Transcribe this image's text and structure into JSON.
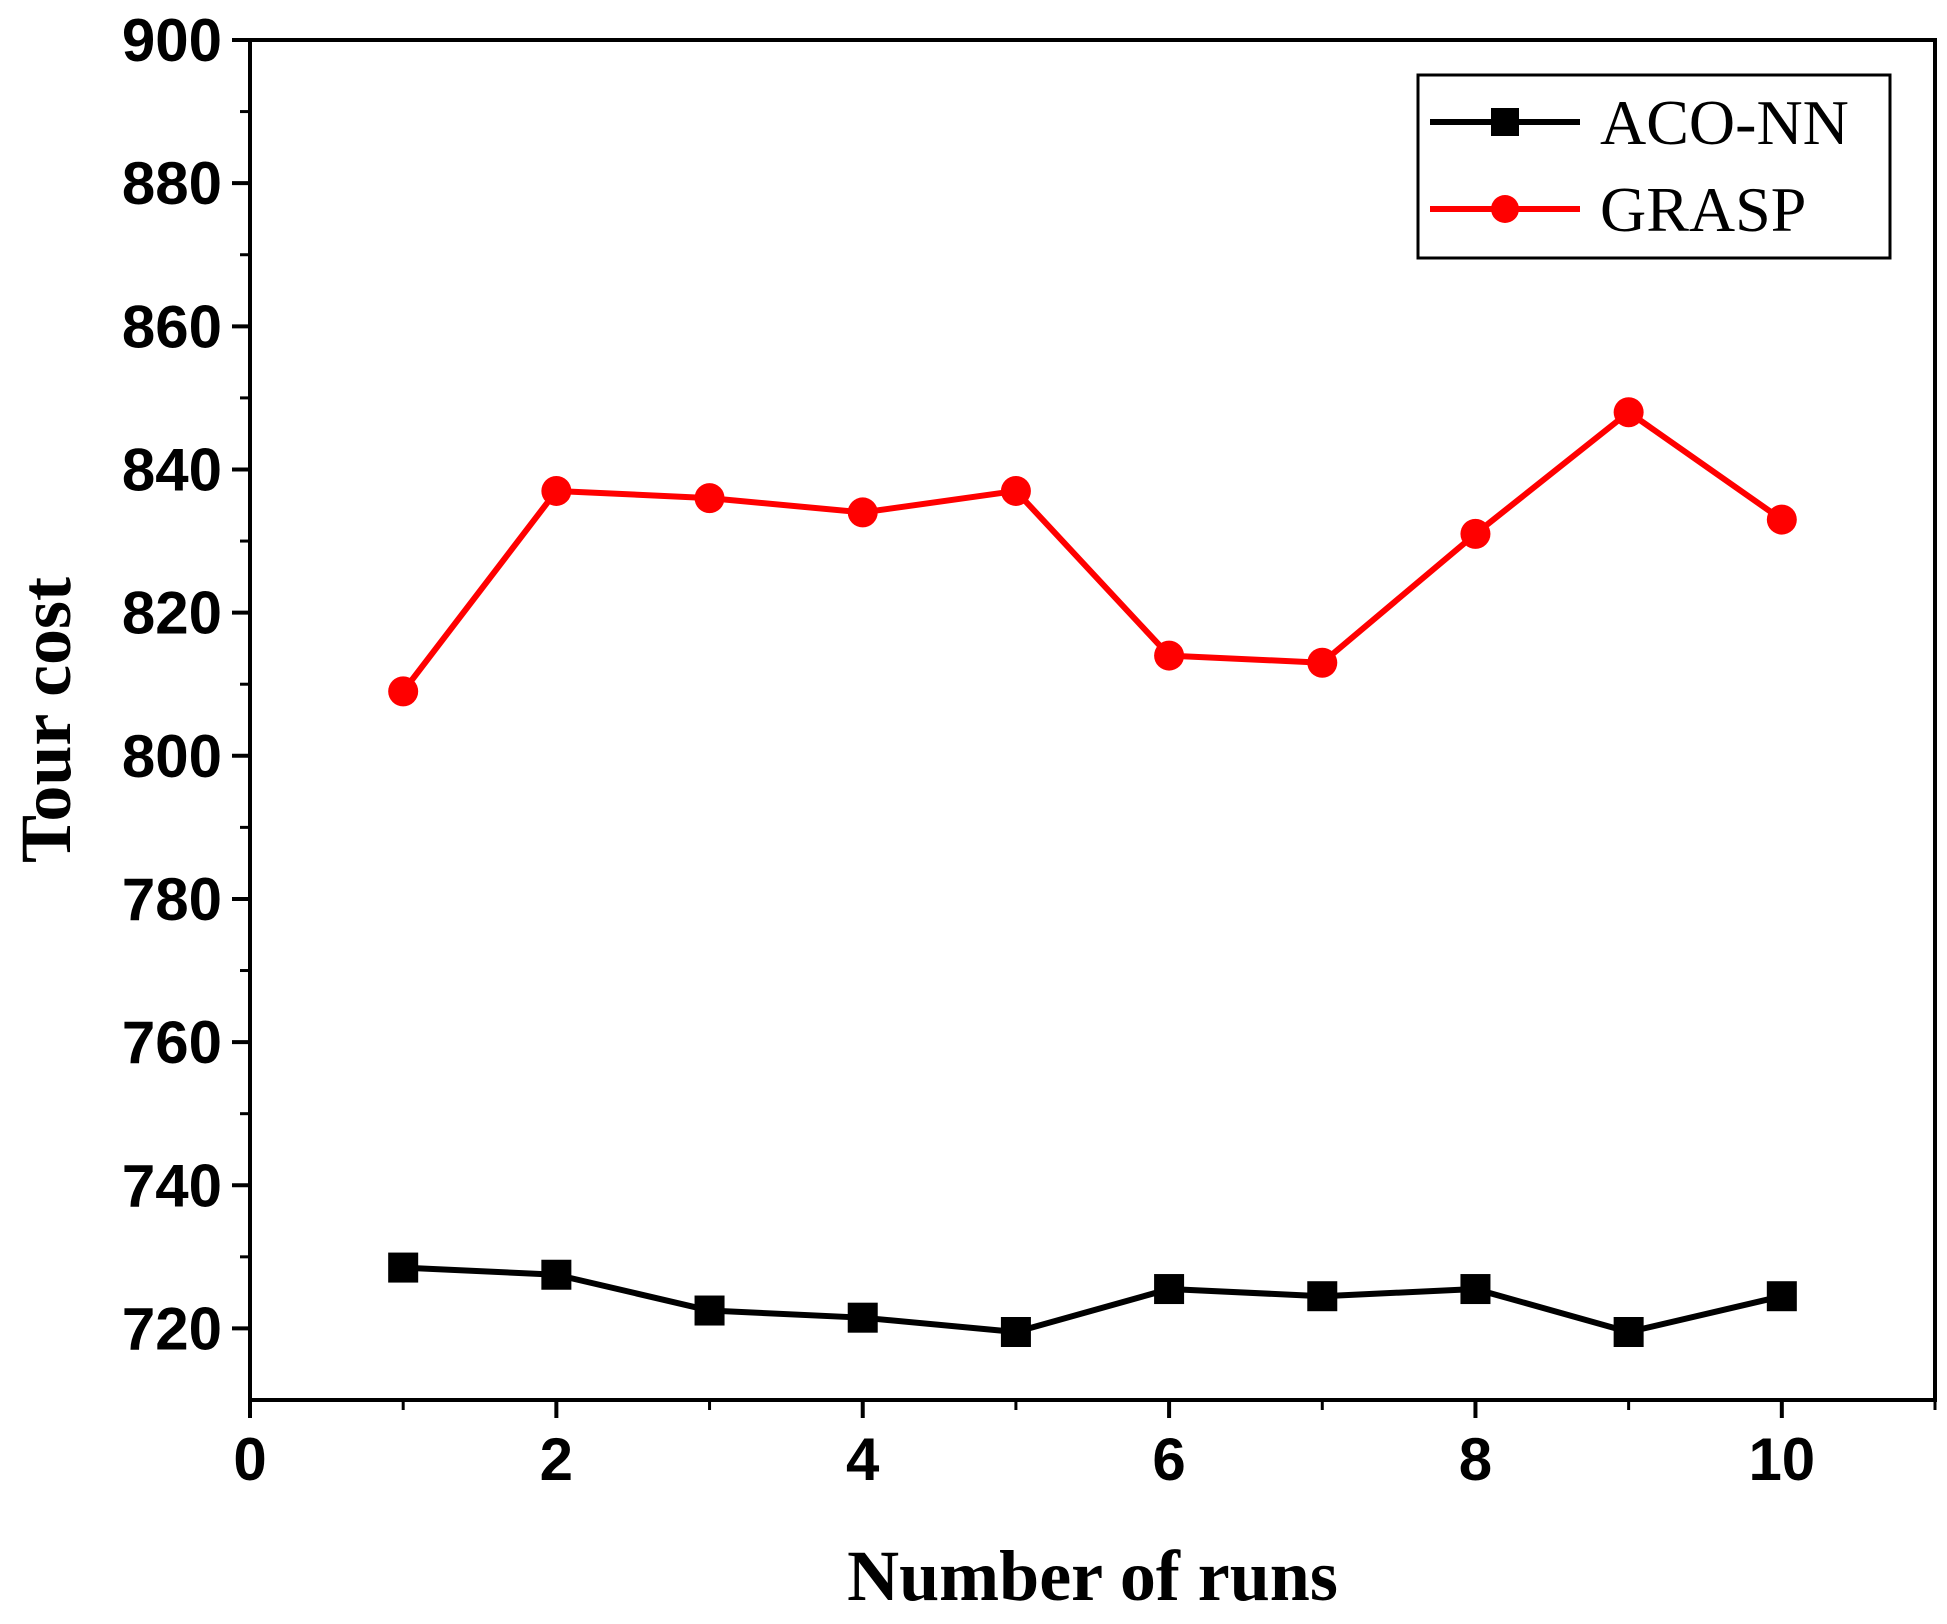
{
  "chart_data": {
    "type": "line",
    "title": "",
    "xlabel": "Number of runs",
    "ylabel": "Tour cost",
    "xlim": [
      0,
      11
    ],
    "ylim": [
      710,
      900
    ],
    "xticks": [
      0,
      2,
      4,
      6,
      8,
      10
    ],
    "yticks": [
      720,
      740,
      760,
      780,
      800,
      820,
      840,
      860,
      880,
      900
    ],
    "grid": false,
    "legend_position": "top-right",
    "x": [
      1,
      2,
      3,
      4,
      5,
      6,
      7,
      8,
      9,
      10
    ],
    "series": [
      {
        "name": "ACO-NN",
        "color": "#000000",
        "marker": "square",
        "values": [
          728.5,
          727.5,
          722.5,
          721.5,
          719.5,
          725.5,
          724.5,
          725.5,
          719.5,
          724.5
        ]
      },
      {
        "name": "GRASP",
        "color": "#ff0000",
        "marker": "circle",
        "values": [
          809,
          837,
          836,
          834,
          837,
          814,
          813,
          831,
          848,
          833
        ]
      }
    ]
  }
}
